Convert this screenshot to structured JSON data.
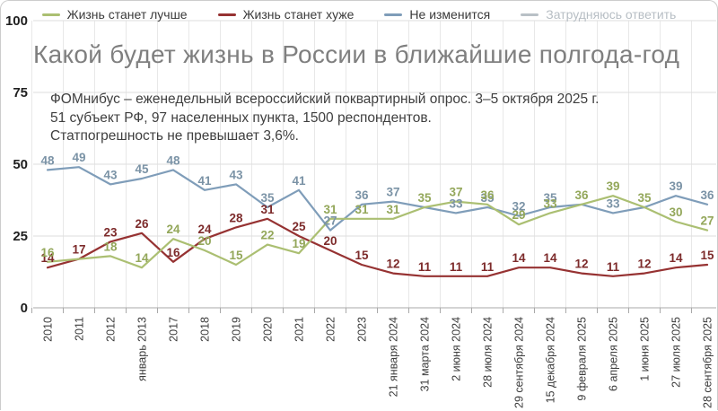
{
  "legend": {
    "items": [
      {
        "label": "Жизнь станет лучше",
        "slug": "life-better",
        "color": "#abbf72",
        "muted": false
      },
      {
        "label": "Жизнь станет хуже",
        "slug": "life-worse",
        "color": "#963232",
        "muted": false
      },
      {
        "label": "Не изменится",
        "slug": "no-change",
        "color": "#7f9db9",
        "muted": false
      },
      {
        "label": "Затрудняюсь ответить",
        "slug": "hard-to-answer",
        "color": "#b9c0c6",
        "muted": true
      }
    ]
  },
  "subtitle": {
    "lines": [
      "ФОМнибус – еженедельный всероссийский поквартирный опрос. 3–5 октября 2025 г.",
      "51 субъект РФ, 97 населенных пункта, 1500 респондентов.",
      "Статпогрешность не превышает 3,6%."
    ]
  },
  "chart_data": {
    "type": "line",
    "title": "Какой будет жизнь в России в ближайшие полгода-год",
    "legend_position": "top",
    "grid": true,
    "ylim": [
      0,
      100
    ],
    "yticks": [
      0,
      25,
      50,
      75,
      100
    ],
    "categories": [
      "2010",
      "2011",
      "2012",
      "январь 2013",
      "2017",
      "2018",
      "2019",
      "2020",
      "2021",
      "2022",
      "2023",
      "21 января 2024",
      "31 марта 2024",
      "2 июня 2024",
      "28 июля 2024",
      "29 сентября 2024",
      "15 декабря 2024",
      "9 февраля 2025",
      "6 апреля 2025",
      "1 июня 2025",
      "27 июля 2025",
      "28 сентября 2025"
    ],
    "series": [
      {
        "name": "Жизнь станет лучше",
        "slug": "life-better",
        "color": "#abbf72",
        "label_color": "#93a75a",
        "values": [
          16,
          17,
          18,
          14,
          24,
          20,
          15,
          22,
          19,
          31,
          31,
          31,
          35,
          37,
          36,
          29,
          33,
          36,
          39,
          35,
          30,
          27
        ],
        "hide_labels": [
          1
        ]
      },
      {
        "name": "Жизнь станет хуже",
        "slug": "life-worse",
        "color": "#963232",
        "label_color": "#7d2b2b",
        "values": [
          14,
          17,
          23,
          26,
          16,
          24,
          28,
          31,
          25,
          20,
          15,
          12,
          11,
          11,
          11,
          14,
          14,
          12,
          11,
          12,
          14,
          15
        ],
        "hide_labels": []
      },
      {
        "name": "Не изменится",
        "slug": "no-change",
        "color": "#7f9db9",
        "label_color": "#7b93a6",
        "values": [
          48,
          49,
          43,
          45,
          48,
          41,
          43,
          35,
          41,
          27,
          36,
          37,
          35,
          33,
          35,
          32,
          35,
          36,
          33,
          35,
          39,
          36
        ],
        "hide_labels": [
          12,
          17,
          19
        ]
      }
    ]
  }
}
